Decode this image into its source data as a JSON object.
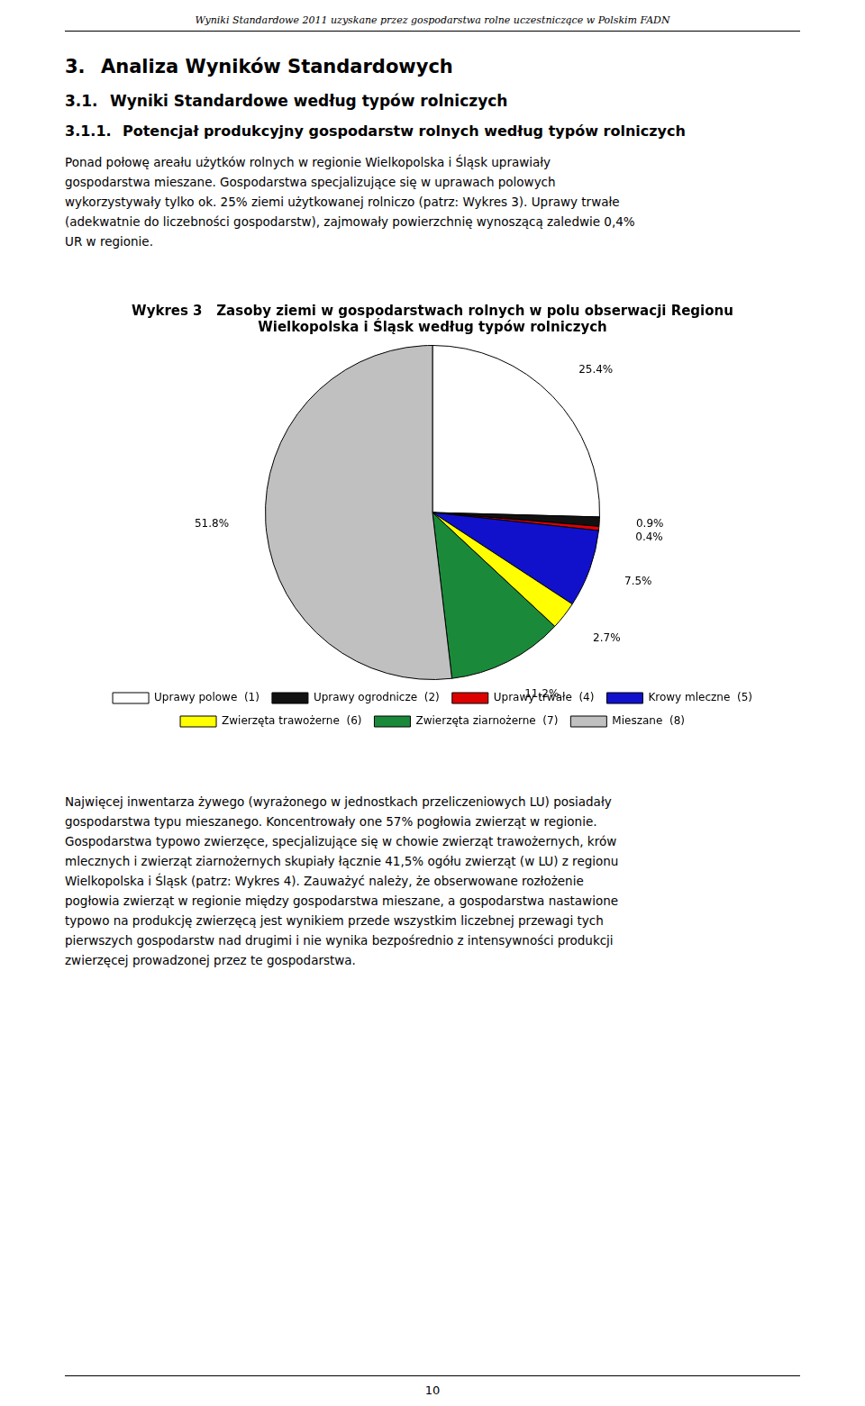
{
  "header": "Wyniki Standardowe 2011 uzyskane przez gospodarstwa rolne uczestniczące w Polskim FADN",
  "headings": [
    {
      "number": "3.",
      "title": "Analiza Wyników Standardowych"
    },
    {
      "number": "3.1.",
      "title": "Wyniki Standardowe według typów rolniczych"
    },
    {
      "number": "3.1.1.",
      "title": "Potencjał produkcyjny gospodarstw rolnych według typów rolniczych"
    }
  ],
  "paragraph_before_chart": [
    "Ponad połowę areału użytków rolnych w regionie Wielkopolska i Śląsk uprawiały",
    "gospodarstwa mieszane. Gospodarstwa specjalizujące się w uprawach polowych",
    "wykorzystywały tylko ok. 25% ziemi użytkowanej rolniczo (patrz: Wykres 3). Uprawy trwałe",
    "(adekwatnie do liczebności gospodarstw), zajmowały powierzchnię wynoszącą zaledwie 0,4%",
    "UR w regionie."
  ],
  "chart_data": {
    "type": "pie",
    "title": [
      "Wykres 3   Zasoby ziemi w gospodarstwach rolnych w polu obserwacji Regionu",
      "Wielkopolska i Śląsk według typów rolniczych"
    ],
    "categories": [
      "Uprawy polowe  (1)",
      "Uprawy ogrodnicze  (2)",
      "Uprawy trwałe  (4)",
      "Krowy mleczne  (5)",
      "Zwierzęta trawożerne  (6)",
      "Zwierzęta ziarnożerne  (7)",
      "Mieszane  (8)"
    ],
    "values": [
      25.4,
      0.9,
      0.4,
      7.5,
      2.7,
      11.2,
      51.8
    ],
    "value_labels": [
      "25.4%",
      "0.9%",
      "0.4%",
      "7.5%",
      "2.7%",
      "11.2%",
      "51.8%"
    ],
    "colors": [
      "#ffffff",
      "#111111",
      "#dd0000",
      "#1111cc",
      "#ffff00",
      "#1a8a3a",
      "#c0c0c0"
    ],
    "data_labels": true,
    "legend": "bottom"
  },
  "paragraph_after_chart": [
    "Najwięcej inwentarza żywego (wyrażonego w jednostkach przeliczeniowych LU) posiadały",
    "gospodarstwa typu mieszanego. Koncentrowały one 57% pogłowia zwierząt w regionie.",
    "Gospodarstwa typowo zwierzęce, specjalizujące się w chowie zwierząt trawożernych, krów",
    "mlecznych i zwierząt ziarnożernych skupiały łącznie 41,5% ogółu zwierząt (w LU) z regionu",
    "Wielkopolska i Śląsk (patrz: Wykres 4). Zauważyć należy, że obserwowane rozłożenie",
    "pogłowia zwierząt w regionie między gospodarstwa mieszane, a gospodarstwa nastawione",
    "typowo na produkcję zwierzęcą jest wynikiem przede wszystkim liczebnej przewagi tych",
    "pierwszych gospodarstw nad drugimi i nie wynika bezpośrednio z intensywności produkcji",
    "zwierzęcej prowadzonej przez te gospodarstwa."
  ],
  "page": "10"
}
